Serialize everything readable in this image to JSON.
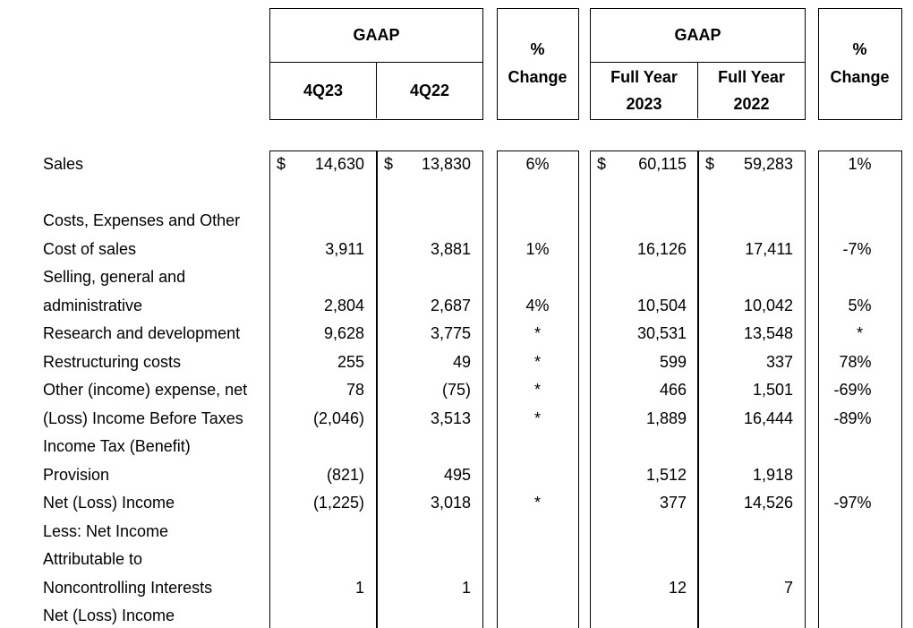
{
  "colors": {
    "text": "#000000",
    "background": "#ffffff",
    "border": "#000000"
  },
  "table": {
    "currency_symbol": "$",
    "footnote_marker": "*",
    "header": {
      "quarterly": {
        "group": "GAAP",
        "col1": "4Q23",
        "col2": "4Q22"
      },
      "pct_quarterly": {
        "line1": "%",
        "line2": "Change"
      },
      "full_year": {
        "group": "GAAP",
        "col1_line1": "Full Year",
        "col1_line2": "2023",
        "col2_line1": "Full Year",
        "col2_line2": "2022"
      },
      "pct_full_year": {
        "line1": "%",
        "line2": "Change"
      }
    },
    "rows": [
      {
        "label": "Sales",
        "q23": "14,630",
        "q22": "13,830",
        "pct_q": "6%",
        "fy23": "60,115",
        "fy22": "59,283",
        "pct_fy": "1%",
        "dollar": true
      },
      {
        "label": ""
      },
      {
        "label": "Costs, Expenses and Other"
      },
      {
        "label": "Cost of sales",
        "q23": "3,911",
        "q22": "3,881",
        "pct_q": "1%",
        "fy23": "16,126",
        "fy22": "17,411",
        "pct_fy": "-7%"
      },
      {
        "label": "Selling, general and"
      },
      {
        "label": "administrative",
        "q23": "2,804",
        "q22": "2,687",
        "pct_q": "4%",
        "fy23": "10,504",
        "fy22": "10,042",
        "pct_fy": "5%"
      },
      {
        "label": "Research and development",
        "q23": "9,628",
        "q22": "3,775",
        "pct_q": "*",
        "fy23": "30,531",
        "fy22": "13,548",
        "pct_fy": "*"
      },
      {
        "label": "Restructuring costs",
        "q23": "255",
        "q22": "49",
        "pct_q": "*",
        "fy23": "599",
        "fy22": "337",
        "pct_fy": "78%"
      },
      {
        "label": "Other (income) expense, net",
        "q23": "78",
        "q22": "(75)",
        "pct_q": "*",
        "fy23": "466",
        "fy22": "1,501",
        "pct_fy": "-69%"
      },
      {
        "label": "(Loss) Income Before Taxes",
        "q23": "(2,046)",
        "q22": "3,513",
        "pct_q": "*",
        "fy23": "1,889",
        "fy22": "16,444",
        "pct_fy": "-89%"
      },
      {
        "label": "Income Tax (Benefit)"
      },
      {
        "label": "Provision",
        "q23": "(821)",
        "q22": "495",
        "fy23": "1,512",
        "fy22": "1,918"
      },
      {
        "label": "Net (Loss) Income",
        "q23": "(1,225)",
        "q22": "3,018",
        "pct_q": "*",
        "fy23": "377",
        "fy22": "14,526",
        "pct_fy": "-97%"
      },
      {
        "label": "Less: Net Income"
      },
      {
        "label": "Attributable to"
      },
      {
        "label": "Noncontrolling Interests",
        "q23": "1",
        "q22": "1",
        "fy23": "12",
        "fy22": "7"
      },
      {
        "label": "Net (Loss) Income"
      }
    ]
  }
}
